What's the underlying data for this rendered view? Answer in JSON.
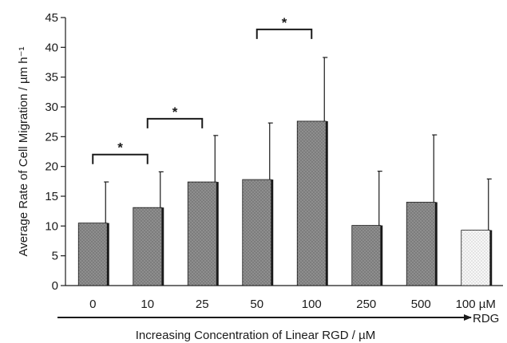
{
  "chart_data": {
    "type": "bar",
    "ylabel": "Average Rate of Cell Migration / µm h⁻¹",
    "xlabel": "Increasing Concentration of Linear RGD / µM",
    "ylim": [
      0,
      45
    ],
    "yticks": [
      0,
      5,
      10,
      15,
      20,
      25,
      30,
      35,
      40,
      45
    ],
    "categories": [
      "0",
      "10",
      "25",
      "50",
      "100",
      "250",
      "500",
      "100 µM"
    ],
    "values": [
      10.5,
      13.1,
      17.4,
      17.8,
      27.6,
      10.1,
      14.0,
      9.3
    ],
    "error_upper": [
      17.4,
      19.1,
      25.2,
      27.3,
      38.3,
      19.2,
      25.3,
      17.9
    ],
    "bar_styles": [
      "dark-stipple",
      "dark-stipple",
      "dark-stipple",
      "dark-stipple",
      "dark-stipple",
      "dark-stipple",
      "dark-stipple",
      "light-stipple"
    ],
    "arrow_end_label": "RDG",
    "significance": [
      {
        "from": 0,
        "to": 1,
        "y": 22,
        "label": "*"
      },
      {
        "from": 1,
        "to": 2,
        "y": 28,
        "label": "*"
      },
      {
        "from": 3,
        "to": 4,
        "y": 43,
        "label": "*"
      }
    ],
    "colors": {
      "bar_dark": "#8e8e8e",
      "bar_light": "#f2f2f2",
      "ink": "#1a1a1a"
    },
    "grid": false,
    "legend": "none"
  }
}
